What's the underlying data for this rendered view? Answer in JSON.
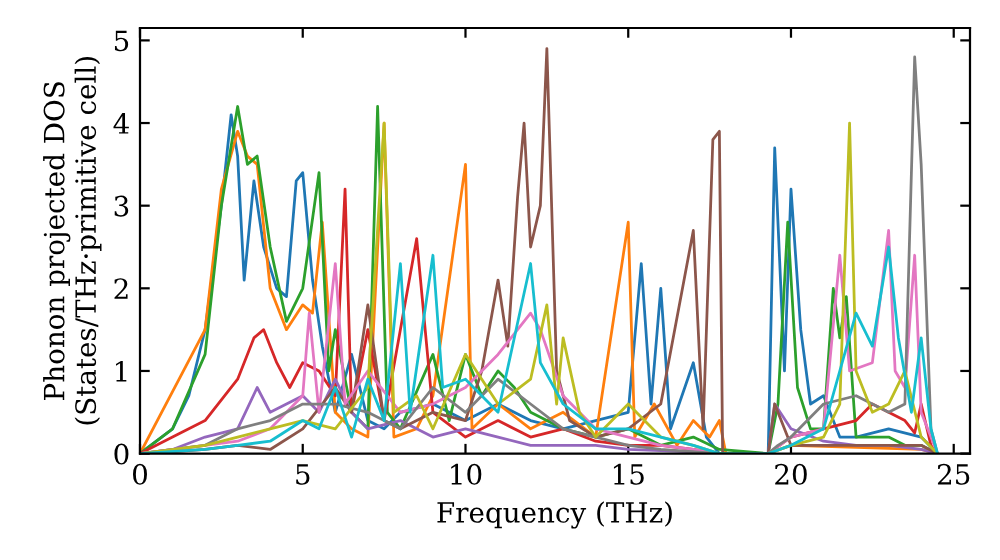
{
  "chart_data": {
    "type": "line",
    "xlabel": "Frequency (THz)",
    "ylabel": "Phonon projected DOS\n(States/THz·primitive cell)",
    "xlim": [
      0,
      25.5
    ],
    "ylim": [
      0,
      5.15
    ],
    "xticks": [
      0,
      5,
      10,
      15,
      20,
      25
    ],
    "yticks": [
      0,
      1,
      2,
      3,
      4,
      5
    ],
    "grid": false,
    "legend": false,
    "marker": "none",
    "line_style": "solid",
    "series": [
      {
        "color": "#1f77b4",
        "x": [
          0,
          1,
          1.5,
          2,
          2.5,
          2.8,
          3.0,
          3.2,
          3.5,
          3.8,
          4.2,
          4.5,
          4.8,
          5.0,
          5.3,
          5.6,
          6,
          6.5,
          7,
          7.5,
          8,
          9,
          10,
          11,
          12,
          13,
          14,
          15,
          15.4,
          15.7,
          16,
          16.3,
          17,
          17.4,
          17.8,
          19.3,
          19.5,
          19.8,
          20.0,
          20.3,
          20.6,
          21,
          21.5,
          22,
          23,
          24,
          24.5
        ],
        "values": [
          0,
          0.3,
          0.7,
          1.5,
          3.0,
          4.1,
          3.6,
          2.1,
          3.3,
          2.5,
          2.0,
          1.9,
          3.3,
          3.4,
          2.1,
          1.3,
          0.5,
          1.2,
          0.4,
          0.3,
          0.5,
          0.6,
          0.4,
          0.6,
          0.4,
          0.3,
          0.4,
          0.5,
          2.3,
          0.6,
          2.0,
          0.3,
          1.1,
          0.2,
          0,
          0,
          3.7,
          1.0,
          3.2,
          1.5,
          0.6,
          0.7,
          0.2,
          0.2,
          0.3,
          0.2,
          0
        ]
      },
      {
        "color": "#ff7f0e",
        "x": [
          0,
          2,
          2.5,
          3,
          3.3,
          3.6,
          4,
          4.5,
          5,
          5.3,
          5.6,
          6,
          6.5,
          7,
          7.5,
          7.8,
          8.5,
          9,
          10,
          10.2,
          11,
          12,
          13,
          14,
          15,
          15.2,
          15.8,
          16.5,
          17,
          17.5,
          17.8,
          18,
          19.3,
          20,
          24,
          24.5
        ],
        "values": [
          0,
          1.5,
          3.2,
          3.9,
          3.6,
          3.5,
          2.0,
          1.5,
          1.8,
          1.7,
          2.8,
          0.5,
          0.3,
          0.2,
          4.0,
          0.2,
          0.3,
          0.7,
          3.5,
          0.3,
          0.6,
          0.3,
          0.5,
          0.2,
          2.8,
          0.2,
          0.6,
          0.1,
          0.4,
          0.2,
          0.4,
          0,
          0,
          0.1,
          0.05,
          0
        ]
      },
      {
        "color": "#2ca02c",
        "x": [
          0,
          1,
          2,
          2.5,
          3,
          3.3,
          3.6,
          4,
          4.5,
          5,
          5.5,
          5.8,
          6,
          6.5,
          7,
          7.3,
          7.6,
          8,
          9,
          9.5,
          10,
          10.5,
          11,
          11.5,
          12,
          12.5,
          13,
          14,
          15,
          16,
          17,
          17.8,
          19.3,
          19.6,
          19.9,
          20.2,
          20.6,
          21,
          21.3,
          21.5,
          21.7,
          22,
          23,
          23.5,
          24,
          24.5
        ],
        "values": [
          0,
          0.3,
          1.2,
          3.0,
          4.2,
          3.5,
          3.6,
          2.5,
          1.6,
          2.0,
          3.4,
          1.0,
          1.5,
          0.5,
          0.3,
          4.2,
          0.5,
          0.3,
          1.2,
          0.4,
          1.2,
          0.7,
          1.0,
          0.8,
          0.5,
          0.4,
          0.3,
          0.2,
          0.3,
          0.1,
          0.2,
          0.05,
          0,
          0.6,
          2.8,
          0.8,
          0.3,
          0.3,
          2.0,
          1.4,
          1.9,
          0.2,
          0.2,
          0.1,
          0.1,
          0
        ]
      },
      {
        "color": "#d62728",
        "x": [
          0,
          1,
          2,
          3,
          3.5,
          3.8,
          4.2,
          4.6,
          5,
          5.5,
          6,
          6.3,
          6.5,
          7,
          7.5,
          8.5,
          9,
          10,
          11,
          12,
          13,
          14,
          15,
          16,
          17,
          17.8,
          19.3,
          20,
          21,
          22,
          22.5,
          23,
          23.5,
          23.8,
          24,
          24.3,
          24.5
        ],
        "values": [
          0,
          0.2,
          0.4,
          0.9,
          1.4,
          1.5,
          1.1,
          0.8,
          1.1,
          1.0,
          0.7,
          3.2,
          0.5,
          1.5,
          0.4,
          2.6,
          0.5,
          0.2,
          0.4,
          0.2,
          0.3,
          0.15,
          0.1,
          0.1,
          0.05,
          0,
          0,
          0.2,
          0.3,
          0.4,
          0.6,
          0.5,
          0.4,
          0.25,
          0.6,
          0.1,
          0
        ]
      },
      {
        "color": "#9467bd",
        "x": [
          0,
          1,
          2,
          3,
          3.6,
          4,
          5,
          5.5,
          6,
          6.5,
          7,
          8,
          9,
          10,
          11,
          12,
          13,
          14,
          15,
          17,
          17.8,
          19.3,
          19.5,
          20,
          21,
          22,
          23,
          24,
          24.5
        ],
        "values": [
          0,
          0.05,
          0.2,
          0.3,
          0.8,
          0.5,
          0.7,
          0.5,
          0.9,
          0.5,
          0.3,
          0.4,
          0.2,
          0.3,
          0.2,
          0.1,
          0.1,
          0.1,
          0.05,
          0.02,
          0,
          0,
          0.6,
          0.3,
          0.15,
          0.1,
          0.1,
          0.05,
          0
        ]
      },
      {
        "color": "#8c564b",
        "x": [
          0,
          1,
          2,
          3,
          4,
          5,
          6,
          6.5,
          7,
          7.5,
          8,
          9,
          10,
          10.5,
          11,
          11.3,
          11.6,
          11.8,
          12.0,
          12.3,
          12.5,
          12.8,
          13.2,
          14,
          15,
          16,
          17,
          17.3,
          17.6,
          17.8,
          17.9,
          19.3,
          19.5,
          20,
          22,
          24,
          24.5
        ],
        "values": [
          0,
          0.02,
          0.05,
          0.1,
          0.05,
          0.3,
          0.8,
          0.5,
          1.8,
          0.4,
          0.3,
          0.5,
          0.4,
          1.0,
          2.1,
          1.3,
          3.1,
          4.0,
          2.5,
          3.0,
          4.9,
          1.0,
          0.4,
          0.2,
          0.3,
          0.6,
          2.7,
          0.3,
          3.8,
          3.9,
          0,
          0,
          0.6,
          0.1,
          0.1,
          0.1,
          0
        ]
      },
      {
        "color": "#e377c2",
        "x": [
          0,
          2,
          3,
          4,
          5,
          5.2,
          5.5,
          6,
          6.3,
          7,
          8,
          9,
          10,
          11,
          12,
          12.3,
          13,
          14,
          15,
          16,
          17,
          17.8,
          19.3,
          20,
          21,
          21.5,
          21.8,
          22.5,
          23,
          23.2,
          23.5,
          23.8,
          24,
          24.3,
          24.5
        ],
        "values": [
          0,
          0.1,
          0.15,
          0.3,
          0.7,
          1.7,
          0.5,
          2.3,
          0.6,
          1.0,
          0.5,
          0.6,
          0.8,
          1.2,
          1.7,
          1.5,
          0.7,
          0.3,
          0.2,
          0.1,
          0.05,
          0,
          0,
          0.2,
          0.3,
          2.4,
          1.0,
          1.1,
          2.7,
          1.0,
          0.8,
          2.4,
          0.5,
          0.2,
          0
        ]
      },
      {
        "color": "#7f7f7f",
        "x": [
          0,
          2,
          3,
          4,
          5,
          6,
          7,
          8,
          9,
          10,
          11,
          12,
          13,
          14,
          15,
          16,
          17.8,
          19.3,
          19.6,
          20,
          21,
          22,
          23,
          23.5,
          23.8,
          24,
          24.3,
          24.5
        ],
        "values": [
          0,
          0.1,
          0.3,
          0.4,
          0.6,
          0.6,
          0.5,
          0.3,
          0.8,
          0.5,
          0.9,
          0.6,
          0.3,
          0.2,
          0.1,
          0.05,
          0,
          0,
          0.1,
          0.2,
          0.6,
          0.7,
          0.5,
          0.6,
          4.8,
          3.5,
          0.3,
          0
        ]
      },
      {
        "color": "#bcbd22",
        "x": [
          0,
          2,
          3,
          4,
          5,
          6,
          7,
          7.5,
          7.8,
          8.5,
          9,
          10,
          11,
          12,
          12.5,
          12.8,
          13,
          13.5,
          14,
          15,
          16,
          17,
          17.8,
          19.3,
          20,
          21,
          21.5,
          21.8,
          22,
          22.5,
          23,
          23.5,
          24,
          24.5
        ],
        "values": [
          0,
          0.1,
          0.2,
          0.3,
          0.4,
          0.3,
          0.8,
          4.0,
          0.5,
          0.7,
          0.3,
          1.2,
          0.6,
          0.9,
          1.8,
          0.6,
          1.4,
          0.5,
          0.2,
          0.6,
          0.2,
          0.1,
          0,
          0,
          0.1,
          0.2,
          0.6,
          4.0,
          1.0,
          0.5,
          0.6,
          1.0,
          0.2,
          0
        ]
      },
      {
        "color": "#17becf",
        "x": [
          0,
          2,
          3,
          4,
          5,
          5.5,
          6,
          6.5,
          7,
          7.5,
          8,
          8.3,
          9,
          9.3,
          10,
          11,
          12,
          12.3,
          13,
          14,
          15,
          16,
          17,
          17.8,
          19.3,
          20,
          21,
          22,
          22.5,
          23,
          23.3,
          23.7,
          24,
          24.3,
          24.5
        ],
        "values": [
          0,
          0.05,
          0.1,
          0.15,
          0.4,
          0.3,
          0.8,
          0.2,
          0.9,
          0.4,
          2.3,
          0.5,
          2.4,
          0.8,
          0.9,
          0.5,
          2.3,
          1.1,
          0.6,
          0.3,
          0.3,
          0.2,
          0.1,
          0,
          0,
          0.1,
          0.3,
          1.7,
          1.3,
          2.5,
          1.4,
          0.5,
          1.4,
          0.3,
          0
        ]
      }
    ]
  }
}
